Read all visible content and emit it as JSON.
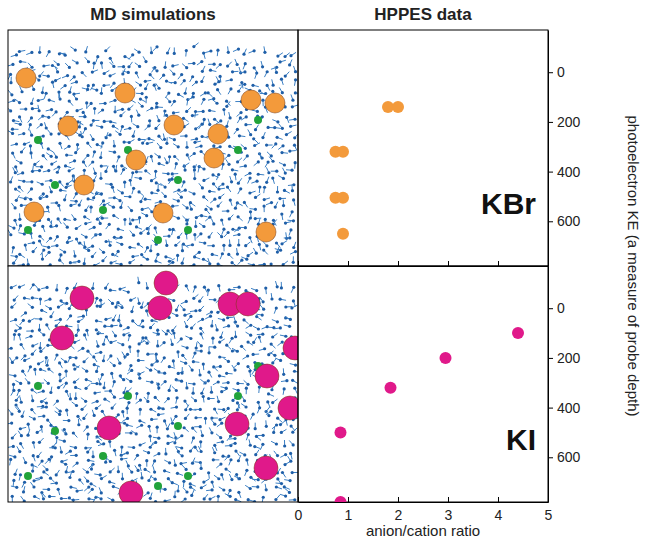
{
  "header": {
    "left": "MD simulations",
    "right": "HPPES data"
  },
  "chart_data": [
    {
      "type": "scatter",
      "title": "KBr",
      "color": "#f39a3b",
      "marker": "circle",
      "ylabel": "photoelectron KE (a measure of probe depth)",
      "x": [
        1.8,
        2.0,
        0.75,
        0.9,
        0.75,
        0.9,
        0.9
      ],
      "values": [
        140,
        140,
        320,
        320,
        505,
        505,
        650
      ],
      "xlim": [
        0,
        5
      ],
      "xticks": [
        0,
        1,
        2,
        3,
        4,
        5
      ],
      "ylim": [
        -170,
        780
      ],
      "yticks": [
        0,
        200,
        400,
        600
      ],
      "tick_labels": "y"
    },
    {
      "type": "scatter",
      "title": "KI",
      "color": "#e0198a",
      "marker": "circle",
      "xlabel": "anion/cation ratio",
      "x": [
        4.4,
        2.95,
        1.85,
        0.85,
        0.85
      ],
      "values": [
        100,
        200,
        320,
        500,
        780
      ],
      "xlim": [
        0,
        5
      ],
      "xticks": [
        0,
        1,
        2,
        3,
        4,
        5
      ],
      "ylim": [
        -170,
        780
      ],
      "yticks": [
        0,
        200,
        400,
        600
      ],
      "tick_labels": true
    }
  ]
}
